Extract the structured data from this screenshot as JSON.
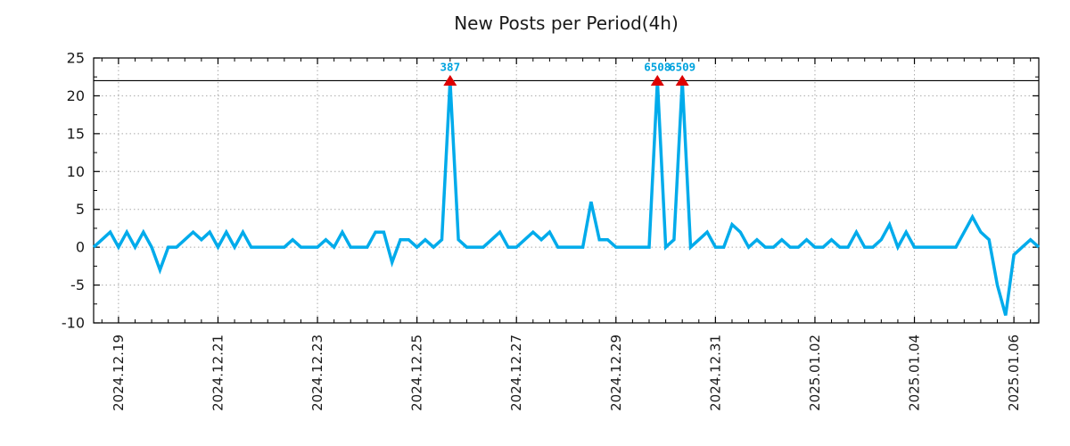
{
  "chart": {
    "title": "New Posts per Period(4h)"
  },
  "chart_data": {
    "type": "line",
    "title": "New Posts per Period(4h)",
    "period": "4h",
    "grid": true,
    "legend": false,
    "ylim": [
      -10,
      25
    ],
    "yticks": [
      -10,
      -5,
      0,
      5,
      10,
      15,
      20,
      25
    ],
    "y_minor_step": 2.5,
    "x_minor_every_points": 2,
    "clip_line_y": 22,
    "line_color": "#00ABEB",
    "marker_color": "#DD0000",
    "annotation_color": "#00A3DE",
    "grid_color": "#aaaaaa",
    "axis_color": "#000000",
    "xticks": [
      {
        "label": "2024.12.19",
        "index": 3
      },
      {
        "label": "2024.12.21",
        "index": 15
      },
      {
        "label": "2024.12.23",
        "index": 27
      },
      {
        "label": "2024.12.25",
        "index": 39
      },
      {
        "label": "2024.12.27",
        "index": 51
      },
      {
        "label": "2024.12.29",
        "index": 63
      },
      {
        "label": "2024.12.31",
        "index": 75
      },
      {
        "label": "2025.01.02",
        "index": 87
      },
      {
        "label": "2025.01.04",
        "index": 99
      },
      {
        "label": "2025.01.06",
        "index": 111
      }
    ],
    "values": [
      0,
      1,
      2,
      0,
      2,
      0,
      2,
      0,
      -3,
      0,
      0,
      1,
      2,
      1,
      2,
      0,
      2,
      0,
      2,
      0,
      0,
      0,
      0,
      0,
      1,
      0,
      0,
      0,
      1,
      0,
      2,
      0,
      0,
      0,
      2,
      2,
      -2,
      1,
      1,
      0,
      1,
      0,
      1,
      22,
      1,
      0,
      0,
      0,
      1,
      2,
      0,
      0,
      1,
      2,
      1,
      2,
      0,
      0,
      0,
      0,
      6,
      1,
      1,
      0,
      0,
      0,
      0,
      0,
      22,
      0,
      1,
      22,
      0,
      1,
      2,
      0,
      0,
      3,
      2,
      0,
      1,
      0,
      0,
      1,
      0,
      0,
      1,
      0,
      0,
      1,
      0,
      0,
      2,
      0,
      0,
      1,
      3,
      0,
      2,
      0,
      0,
      0,
      0,
      0,
      0,
      2,
      4,
      2,
      1,
      -5,
      -9,
      -1,
      0,
      1,
      0
    ],
    "annotations": [
      {
        "label": "387",
        "index": 43,
        "clipped_at": 22
      },
      {
        "label": "6508",
        "index": 68,
        "clipped_at": 22
      },
      {
        "label": "6509",
        "index": 71,
        "clipped_at": 22
      }
    ]
  }
}
